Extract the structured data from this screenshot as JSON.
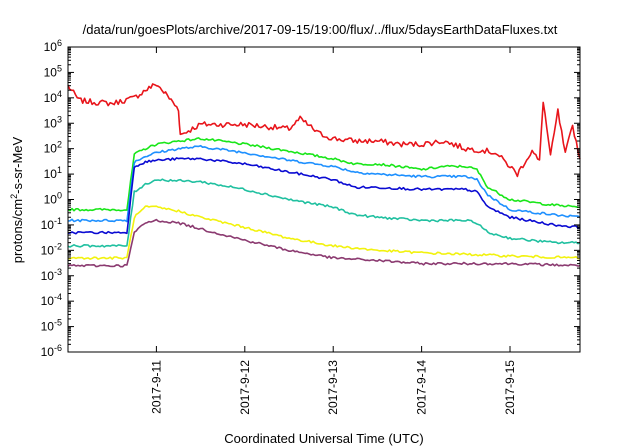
{
  "chart_data": {
    "type": "line",
    "title": "/data/run/goesPlots/archive/2017-09-15/19:00/flux/../flux/5daysEarthDataFluxes.txt",
    "xlabel": "Coordinated Universal Time (UTC)",
    "ylabel": "protons/cm²-s-sr-MeV",
    "ylabel_parts": {
      "base": "protons/cm",
      "sup": "2",
      "rest": "-s-sr-MeV"
    },
    "y_scale": "log",
    "ylim": [
      1e-06,
      1000000.0
    ],
    "xlim": [
      "2017-09-10 00:00",
      "2017-09-15 19:00"
    ],
    "grid": false,
    "legend": "none",
    "x_ticks": [
      {
        "date": "2017-09-11 00:00",
        "label": "2017-9-11"
      },
      {
        "date": "2017-09-12 00:00",
        "label": "2017-9-12"
      },
      {
        "date": "2017-09-13 00:00",
        "label": "2017-9-13"
      },
      {
        "date": "2017-09-14 00:00",
        "label": "2017-9-14"
      },
      {
        "date": "2017-09-15 00:00",
        "label": "2017-9-15"
      }
    ],
    "y_ticks": [
      {
        "value": 1e-06,
        "base": "10",
        "exp": "-6"
      },
      {
        "value": 1e-05,
        "base": "10",
        "exp": "-5"
      },
      {
        "value": 0.0001,
        "base": "10",
        "exp": "-4"
      },
      {
        "value": 0.001,
        "base": "10",
        "exp": "-3"
      },
      {
        "value": 0.01,
        "base": "10",
        "exp": "-2"
      },
      {
        "value": 0.1,
        "base": "10",
        "exp": "-1"
      },
      {
        "value": 1,
        "base": "10",
        "exp": "0"
      },
      {
        "value": 10,
        "base": "10",
        "exp": "1"
      },
      {
        "value": 100,
        "base": "10",
        "exp": "2"
      },
      {
        "value": 1000,
        "base": "10",
        "exp": "3"
      },
      {
        "value": 10000,
        "base": "10",
        "exp": "4"
      },
      {
        "value": 100000,
        "base": "10",
        "exp": "5"
      },
      {
        "value": 1000000,
        "base": "10",
        "exp": "6"
      }
    ],
    "series": [
      {
        "color": "#e8151b",
        "x": [
          "2017-09-10 00:00",
          "2017-09-10 03:00",
          "2017-09-10 06:00",
          "2017-09-10 12:00",
          "2017-09-10 18:00",
          "2017-09-10 21:00",
          "2017-09-11 00:00",
          "2017-09-11 03:00",
          "2017-09-11 06:00",
          "2017-09-11 06:30",
          "2017-09-11 12:00",
          "2017-09-12 00:00",
          "2017-09-12 12:00",
          "2017-09-12 15:00",
          "2017-09-12 18:00",
          "2017-09-12 20:00",
          "2017-09-13 00:00",
          "2017-09-13 06:00",
          "2017-09-13 12:00",
          "2017-09-13 18:00",
          "2017-09-14 00:00",
          "2017-09-14 06:00",
          "2017-09-14 12:00",
          "2017-09-14 16:00",
          "2017-09-14 20:00",
          "2017-09-15 00:00",
          "2017-09-15 02:00",
          "2017-09-15 04:00",
          "2017-09-15 06:00",
          "2017-09-15 08:00",
          "2017-09-15 09:00",
          "2017-09-15 11:00",
          "2017-09-15 13:00",
          "2017-09-15 15:00",
          "2017-09-15 17:00",
          "2017-09-15 19:00"
        ],
        "y": [
          30000,
          8000,
          7000,
          6000,
          10000,
          20000,
          35000,
          12000,
          3500,
          350,
          900,
          900,
          600,
          1500,
          700,
          400,
          250,
          200,
          200,
          150,
          150,
          200,
          100,
          90,
          70,
          20,
          10,
          30,
          80,
          30,
          8000,
          50,
          3000,
          60,
          800,
          40
        ]
      },
      {
        "color": "#19e619",
        "x": [
          "2017-09-10 00:00",
          "2017-09-10 12:00",
          "2017-09-10 16:00",
          "2017-09-10 18:00",
          "2017-09-10 21:00",
          "2017-09-11 00:00",
          "2017-09-11 06:00",
          "2017-09-11 12:00",
          "2017-09-12 00:00",
          "2017-09-12 12:00",
          "2017-09-13 00:00",
          "2017-09-13 06:00",
          "2017-09-13 12:00",
          "2017-09-13 18:00",
          "2017-09-14 00:00",
          "2017-09-14 06:00",
          "2017-09-14 12:00",
          "2017-09-14 15:00",
          "2017-09-14 18:00",
          "2017-09-15 00:00",
          "2017-09-15 12:00",
          "2017-09-15 19:00"
        ],
        "y": [
          0.4,
          0.4,
          0.4,
          60,
          100,
          150,
          200,
          250,
          150,
          80,
          40,
          25,
          25,
          20,
          15,
          20,
          20,
          15,
          3,
          1,
          0.6,
          0.5
        ]
      },
      {
        "color": "#1e90ff",
        "x": [
          "2017-09-10 00:00",
          "2017-09-10 12:00",
          "2017-09-10 16:00",
          "2017-09-10 18:00",
          "2017-09-10 21:00",
          "2017-09-11 00:00",
          "2017-09-11 06:00",
          "2017-09-11 12:00",
          "2017-09-12 00:00",
          "2017-09-12 12:00",
          "2017-09-13 00:00",
          "2017-09-13 06:00",
          "2017-09-13 12:00",
          "2017-09-14 00:00",
          "2017-09-14 12:00",
          "2017-09-14 15:00",
          "2017-09-14 18:00",
          "2017-09-15 00:00",
          "2017-09-15 12:00",
          "2017-09-15 19:00"
        ],
        "y": [
          0.15,
          0.15,
          0.15,
          30,
          50,
          70,
          100,
          120,
          70,
          35,
          20,
          12,
          10,
          8,
          8,
          6,
          1.5,
          0.4,
          0.25,
          0.2
        ]
      },
      {
        "color": "#0a0ad2",
        "x": [
          "2017-09-10 00:00",
          "2017-09-10 12:00",
          "2017-09-10 16:00",
          "2017-09-10 18:00",
          "2017-09-10 21:00",
          "2017-09-11 00:00",
          "2017-09-11 06:00",
          "2017-09-11 12:00",
          "2017-09-12 00:00",
          "2017-09-12 12:00",
          "2017-09-13 00:00",
          "2017-09-13 06:00",
          "2017-09-13 12:00",
          "2017-09-14 00:00",
          "2017-09-14 12:00",
          "2017-09-14 15:00",
          "2017-09-14 18:00",
          "2017-09-15 00:00",
          "2017-09-15 12:00",
          "2017-09-15 19:00"
        ],
        "y": [
          0.05,
          0.05,
          0.05,
          20,
          30,
          35,
          40,
          40,
          25,
          12,
          6,
          3,
          3,
          2.5,
          2.5,
          2,
          0.5,
          0.2,
          0.1,
          0.08
        ]
      },
      {
        "color": "#20c0a0",
        "x": [
          "2017-09-10 00:00",
          "2017-09-10 12:00",
          "2017-09-10 16:00",
          "2017-09-10 18:00",
          "2017-09-10 21:00",
          "2017-09-11 00:00",
          "2017-09-11 12:00",
          "2017-09-12 00:00",
          "2017-09-12 12:00",
          "2017-09-13 00:00",
          "2017-09-13 06:00",
          "2017-09-13 12:00",
          "2017-09-14 00:00",
          "2017-09-14 12:00",
          "2017-09-14 15:00",
          "2017-09-14 18:00",
          "2017-09-15 00:00",
          "2017-09-15 12:00",
          "2017-09-15 19:00"
        ],
        "y": [
          0.015,
          0.015,
          0.015,
          2,
          4,
          6,
          5,
          2.5,
          1,
          0.5,
          0.25,
          0.2,
          0.15,
          0.15,
          0.12,
          0.05,
          0.03,
          0.02,
          0.02
        ]
      },
      {
        "color": "#f2f20e",
        "x": [
          "2017-09-10 00:00",
          "2017-09-10 12:00",
          "2017-09-10 16:00",
          "2017-09-10 18:00",
          "2017-09-10 21:00",
          "2017-09-11 00:00",
          "2017-09-11 06:00",
          "2017-09-11 12:00",
          "2017-09-12 00:00",
          "2017-09-12 12:00",
          "2017-09-13 00:00",
          "2017-09-13 12:00",
          "2017-09-14 00:00",
          "2017-09-14 12:00",
          "2017-09-15 00:00",
          "2017-09-15 19:00"
        ],
        "y": [
          0.005,
          0.005,
          0.005,
          0.2,
          0.5,
          0.5,
          0.35,
          0.2,
          0.08,
          0.03,
          0.015,
          0.01,
          0.008,
          0.007,
          0.006,
          0.005
        ]
      },
      {
        "color": "#8b3a70",
        "x": [
          "2017-09-10 00:00",
          "2017-09-10 12:00",
          "2017-09-10 16:00",
          "2017-09-10 18:00",
          "2017-09-10 21:00",
          "2017-09-11 00:00",
          "2017-09-11 06:00",
          "2017-09-11 12:00",
          "2017-09-12 00:00",
          "2017-09-12 12:00",
          "2017-09-13 00:00",
          "2017-09-13 12:00",
          "2017-09-14 00:00",
          "2017-09-14 12:00",
          "2017-09-15 00:00",
          "2017-09-15 19:00"
        ],
        "y": [
          0.0025,
          0.0025,
          0.0025,
          0.05,
          0.12,
          0.15,
          0.12,
          0.07,
          0.025,
          0.01,
          0.005,
          0.004,
          0.003,
          0.003,
          0.003,
          0.0025
        ]
      }
    ]
  }
}
